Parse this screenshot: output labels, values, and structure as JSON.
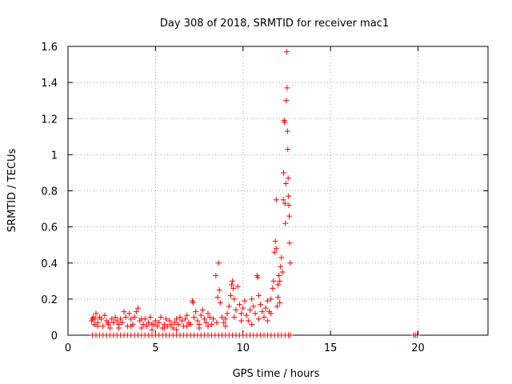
{
  "chart_data": {
    "type": "scatter",
    "title": "Day 308 of 2018, SRMTID for receiver mac1",
    "xlabel": "GPS time / hours",
    "ylabel": "SRMTID / TECUs",
    "xlim": [
      0,
      24
    ],
    "ylim": [
      0,
      1.6
    ],
    "xticks": [
      0,
      5,
      10,
      15,
      20
    ],
    "yticks": [
      0,
      0.2,
      0.4,
      0.6,
      0.8,
      1,
      1.2,
      1.4,
      1.6
    ],
    "xtick_labels": [
      "0",
      "5",
      "10",
      "15",
      "20"
    ],
    "ytick_labels": [
      "0",
      "0.2",
      "0.4",
      "0.6",
      "0.8",
      "1",
      "1.2",
      "1.4",
      "1.6"
    ],
    "grid": true,
    "marker": "plus",
    "color": "#ff0000",
    "series": [
      {
        "values": [
          [
            1.35,
            0.08
          ],
          [
            1.45,
            0.1
          ],
          [
            1.5,
            0.06
          ],
          [
            1.55,
            0.09
          ],
          [
            1.6,
            0.12
          ],
          [
            1.7,
            0.07
          ],
          [
            1.8,
            0.1
          ],
          [
            1.9,
            0.09
          ],
          [
            2.0,
            0.05
          ],
          [
            2.1,
            0.11
          ],
          [
            2.2,
            0.08
          ],
          [
            2.3,
            0.06
          ],
          [
            2.4,
            0.04
          ],
          [
            2.5,
            0.09
          ],
          [
            2.6,
            0.07
          ],
          [
            2.7,
            0.1
          ],
          [
            2.8,
            0.08
          ],
          [
            2.9,
            0.06
          ],
          [
            3.0,
            0.09
          ],
          [
            3.1,
            0.07
          ],
          [
            3.2,
            0.13
          ],
          [
            3.3,
            0.1
          ],
          [
            3.4,
            0.05
          ],
          [
            3.5,
            0.12
          ],
          [
            3.6,
            0.09
          ],
          [
            3.7,
            0.06
          ],
          [
            3.8,
            0.1
          ],
          [
            3.9,
            0.13
          ],
          [
            4.0,
            0.15
          ],
          [
            4.1,
            0.08
          ],
          [
            4.2,
            0.04
          ],
          [
            4.3,
            0.06
          ],
          [
            4.4,
            0.09
          ],
          [
            4.5,
            0.05
          ],
          [
            4.6,
            0.07
          ],
          [
            4.7,
            0.1
          ],
          [
            4.8,
            0.03
          ],
          [
            4.9,
            0.06
          ],
          [
            5.0,
            0.08
          ],
          [
            5.1,
            0.05
          ],
          [
            5.2,
            0.07
          ],
          [
            5.3,
            0.1
          ],
          [
            5.4,
            0.04
          ],
          [
            5.5,
            0.06
          ],
          [
            5.6,
            0.09
          ],
          [
            5.7,
            0.05
          ],
          [
            5.8,
            0.08
          ],
          [
            5.9,
            0.06
          ],
          [
            6.0,
            0.04
          ],
          [
            6.1,
            0.07
          ],
          [
            6.2,
            0.09
          ],
          [
            6.3,
            0.06
          ],
          [
            6.4,
            0.1
          ],
          [
            6.5,
            0.08
          ],
          [
            6.6,
            0.05
          ],
          [
            6.7,
            0.09
          ],
          [
            6.8,
            0.11
          ],
          [
            6.9,
            0.07
          ],
          [
            7.0,
            0.06
          ],
          [
            7.1,
            0.19
          ],
          [
            7.15,
            0.18
          ],
          [
            7.2,
            0.1
          ],
          [
            7.3,
            0.13
          ],
          [
            7.4,
            0.08
          ],
          [
            7.5,
            0.06
          ],
          [
            7.6,
            0.11
          ],
          [
            7.7,
            0.14
          ],
          [
            7.8,
            0.09
          ],
          [
            7.9,
            0.07
          ],
          [
            8.0,
            0.12
          ],
          [
            8.1,
            0.1
          ],
          [
            8.2,
            0.06
          ],
          [
            8.3,
            0.09
          ],
          [
            8.45,
            0.33
          ],
          [
            8.55,
            0.21
          ],
          [
            8.6,
            0.4
          ],
          [
            8.65,
            0.25
          ],
          [
            8.7,
            0.18
          ],
          [
            8.8,
            0.1
          ],
          [
            8.9,
            0.07
          ],
          [
            9.0,
            0.09
          ],
          [
            9.1,
            0.12
          ],
          [
            9.2,
            0.16
          ],
          [
            9.3,
            0.22
          ],
          [
            9.35,
            0.28
          ],
          [
            9.4,
            0.3
          ],
          [
            9.45,
            0.26
          ],
          [
            9.5,
            0.2
          ],
          [
            9.6,
            0.14
          ],
          [
            9.7,
            0.27
          ],
          [
            9.8,
            0.17
          ],
          [
            9.9,
            0.12
          ],
          [
            10.0,
            0.15
          ],
          [
            10.1,
            0.19
          ],
          [
            10.2,
            0.11
          ],
          [
            10.3,
            0.08
          ],
          [
            10.4,
            0.14
          ],
          [
            10.5,
            0.2
          ],
          [
            10.6,
            0.16
          ],
          [
            10.7,
            0.12
          ],
          [
            10.8,
            0.33
          ],
          [
            10.85,
            0.32
          ],
          [
            10.9,
            0.22
          ],
          [
            11.0,
            0.17
          ],
          [
            11.1,
            0.13
          ],
          [
            11.2,
            0.1
          ],
          [
            11.3,
            0.15
          ],
          [
            11.4,
            0.19
          ],
          [
            11.5,
            0.13
          ],
          [
            11.6,
            0.2
          ],
          [
            11.7,
            0.26
          ],
          [
            11.75,
            0.3
          ],
          [
            11.8,
            0.46
          ],
          [
            11.85,
            0.52
          ],
          [
            11.9,
            0.48
          ],
          [
            11.95,
            0.16
          ],
          [
            12.0,
            0.28
          ],
          [
            12.05,
            0.33
          ],
          [
            12.1,
            0.3
          ],
          [
            12.15,
            0.38
          ],
          [
            12.2,
            0.43
          ],
          [
            12.25,
            0.35
          ],
          [
            12.3,
            0.75
          ],
          [
            12.32,
            0.9
          ],
          [
            12.35,
            1.19
          ],
          [
            12.38,
            1.18
          ],
          [
            12.4,
            0.73
          ],
          [
            12.42,
            0.62
          ],
          [
            12.45,
            0.84
          ],
          [
            12.47,
            1.3
          ],
          [
            12.5,
            1.57
          ],
          [
            12.52,
            1.37
          ],
          [
            12.54,
            1.13
          ],
          [
            12.56,
            1.03
          ],
          [
            12.58,
            0.87
          ],
          [
            12.6,
            0.77
          ],
          [
            12.62,
            0.72
          ],
          [
            12.64,
            0.66
          ],
          [
            12.66,
            0.51
          ],
          [
            12.7,
            0.4
          ],
          [
            11.9,
            0.75
          ],
          [
            12.0,
            0.21
          ],
          [
            12.1,
            0.18
          ],
          [
            11.6,
            0.12
          ],
          [
            11.4,
            0.08
          ],
          [
            10.9,
            0.09
          ],
          [
            10.5,
            0.06
          ],
          [
            9.9,
            0.08
          ],
          [
            9.5,
            0.1
          ],
          [
            9.0,
            0.05
          ],
          [
            8.5,
            0.07
          ],
          [
            8.0,
            0.05
          ],
          [
            7.5,
            0.04
          ],
          [
            6.8,
            0.05
          ],
          [
            6.2,
            0.03
          ],
          [
            5.5,
            0.04
          ],
          [
            4.8,
            0.06
          ],
          [
            4.2,
            0.09
          ],
          [
            3.6,
            0.05
          ],
          [
            2.9,
            0.04
          ],
          [
            2.3,
            0.07
          ],
          [
            1.7,
            0.05
          ],
          [
            1.4,
            0.09
          ]
        ]
      },
      {
        "values": [
          [
            1.4,
            0
          ],
          [
            1.6,
            0
          ],
          [
            1.8,
            0
          ],
          [
            2.0,
            0
          ],
          [
            2.2,
            0
          ],
          [
            2.4,
            0
          ],
          [
            2.6,
            0
          ],
          [
            2.8,
            0
          ],
          [
            3.0,
            0
          ],
          [
            3.2,
            0
          ],
          [
            3.4,
            0
          ],
          [
            3.6,
            0
          ],
          [
            3.8,
            0
          ],
          [
            4.0,
            0
          ],
          [
            4.2,
            0
          ],
          [
            4.4,
            0
          ],
          [
            4.6,
            0
          ],
          [
            4.8,
            0
          ],
          [
            5.0,
            0
          ],
          [
            5.2,
            0
          ],
          [
            5.4,
            0
          ],
          [
            5.6,
            0
          ],
          [
            5.8,
            0
          ],
          [
            6.0,
            0
          ],
          [
            6.2,
            0
          ],
          [
            6.4,
            0
          ],
          [
            6.6,
            0
          ],
          [
            6.8,
            0
          ],
          [
            7.0,
            0
          ],
          [
            7.2,
            0
          ],
          [
            7.4,
            0
          ],
          [
            7.6,
            0
          ],
          [
            7.8,
            0
          ],
          [
            8.0,
            0
          ],
          [
            8.2,
            0
          ],
          [
            8.4,
            0
          ],
          [
            8.6,
            0
          ],
          [
            8.8,
            0
          ],
          [
            9.0,
            0
          ],
          [
            9.2,
            0
          ],
          [
            9.4,
            0
          ],
          [
            9.6,
            0
          ],
          [
            9.8,
            0
          ],
          [
            10.0,
            0
          ],
          [
            10.2,
            0
          ],
          [
            10.4,
            0
          ],
          [
            10.6,
            0
          ],
          [
            10.8,
            0
          ],
          [
            11.0,
            0
          ],
          [
            11.2,
            0
          ],
          [
            11.4,
            0
          ],
          [
            11.6,
            0
          ],
          [
            11.8,
            0
          ],
          [
            12.0,
            0
          ],
          [
            12.2,
            0
          ],
          [
            12.4,
            0
          ],
          [
            12.6,
            0
          ],
          [
            12.7,
            0
          ],
          [
            19.75,
            0
          ],
          [
            19.85,
            0
          ],
          [
            19.95,
            0
          ]
        ]
      }
    ]
  }
}
